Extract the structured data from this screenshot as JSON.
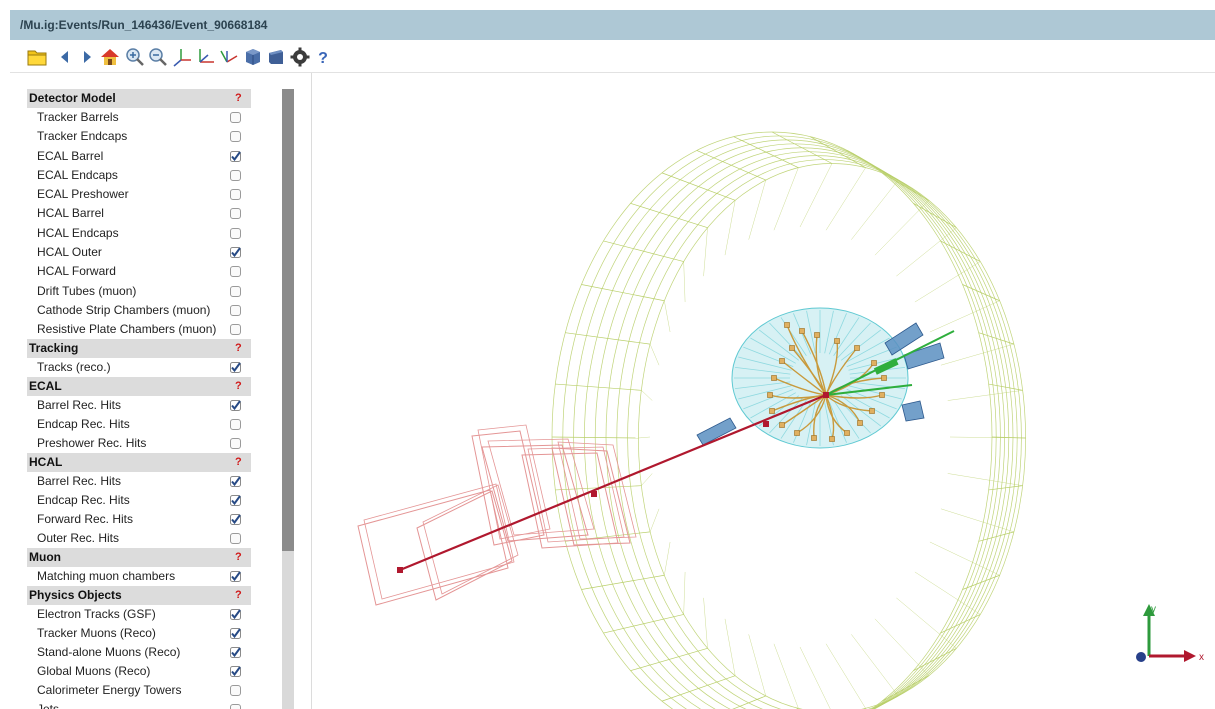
{
  "window": {
    "title": "/Mu.ig:Events/Run_146436/Event_90668184"
  },
  "toolbar": {
    "buttons": [
      {
        "name": "open-file-button",
        "icon": "folder-icon"
      },
      {
        "name": "previous-event-button",
        "icon": "triangle-left-icon"
      },
      {
        "name": "next-event-button",
        "icon": "triangle-right-icon"
      },
      {
        "name": "home-button",
        "icon": "home-icon"
      },
      {
        "name": "zoom-in-button",
        "icon": "magnifier-plus-icon"
      },
      {
        "name": "zoom-out-button",
        "icon": "magnifier-minus-icon"
      },
      {
        "name": "view-3d-button",
        "icon": "axes-xyz-icon"
      },
      {
        "name": "view-rphi-button",
        "icon": "axes-xy-icon"
      },
      {
        "name": "view-rz-button",
        "icon": "axes-yz-icon"
      },
      {
        "name": "perspective-button",
        "icon": "cube-icon"
      },
      {
        "name": "orthographic-button",
        "icon": "box-icon"
      },
      {
        "name": "settings-button",
        "icon": "gear-icon"
      },
      {
        "name": "help-button",
        "icon": "question-icon"
      }
    ]
  },
  "colors": {
    "titlebar": "#aec8d5",
    "section_header": "#dcdcdc",
    "help_mark": "#d01818",
    "checkbox_checked": "#274a85",
    "muon_track": "#b0182e",
    "hcal_outer": "#b9cf6a",
    "ecal_barrel": "#5fc9d2",
    "tracks": "#c89a3c",
    "electron_track": "#2eae3c",
    "muon_chambers": "#e49595",
    "hcal_towers": "#5b8fc1"
  },
  "sidebar": {
    "help": "?",
    "groups": [
      {
        "header": "Detector Model",
        "items": [
          {
            "label": "Tracker Barrels",
            "checked": false
          },
          {
            "label": "Tracker Endcaps",
            "checked": false
          },
          {
            "label": "ECAL Barrel",
            "checked": true
          },
          {
            "label": "ECAL Endcaps",
            "checked": false
          },
          {
            "label": "ECAL Preshower",
            "checked": false
          },
          {
            "label": "HCAL Barrel",
            "checked": false
          },
          {
            "label": "HCAL Endcaps",
            "checked": false
          },
          {
            "label": "HCAL Outer",
            "checked": true
          },
          {
            "label": "HCAL Forward",
            "checked": false
          },
          {
            "label": "Drift Tubes (muon)",
            "checked": false
          },
          {
            "label": "Cathode Strip Chambers (muon)",
            "checked": false
          },
          {
            "label": "Resistive Plate Chambers (muon)",
            "checked": false
          }
        ]
      },
      {
        "header": "Tracking",
        "items": [
          {
            "label": "Tracks (reco.)",
            "checked": true
          }
        ]
      },
      {
        "header": "ECAL",
        "items": [
          {
            "label": "Barrel Rec. Hits",
            "checked": true
          },
          {
            "label": "Endcap Rec. Hits",
            "checked": false
          },
          {
            "label": "Preshower Rec. Hits",
            "checked": false
          }
        ]
      },
      {
        "header": "HCAL",
        "items": [
          {
            "label": "Barrel Rec. Hits",
            "checked": true
          },
          {
            "label": "Endcap Rec. Hits",
            "checked": true
          },
          {
            "label": "Forward Rec. Hits",
            "checked": true
          },
          {
            "label": "Outer Rec. Hits",
            "checked": false
          }
        ]
      },
      {
        "header": "Muon",
        "items": [
          {
            "label": "Matching muon chambers",
            "checked": true
          }
        ]
      },
      {
        "header": "Physics Objects",
        "items": [
          {
            "label": "Electron Tracks (GSF)",
            "checked": true
          },
          {
            "label": "Tracker Muons (Reco)",
            "checked": true
          },
          {
            "label": "Stand-alone Muons (Reco)",
            "checked": true
          },
          {
            "label": "Global Muons (Reco)",
            "checked": true
          },
          {
            "label": "Calorimeter Energy Towers",
            "checked": false
          },
          {
            "label": "Jets",
            "checked": false
          }
        ]
      }
    ]
  },
  "axes": {
    "x": "x",
    "y": "y"
  }
}
